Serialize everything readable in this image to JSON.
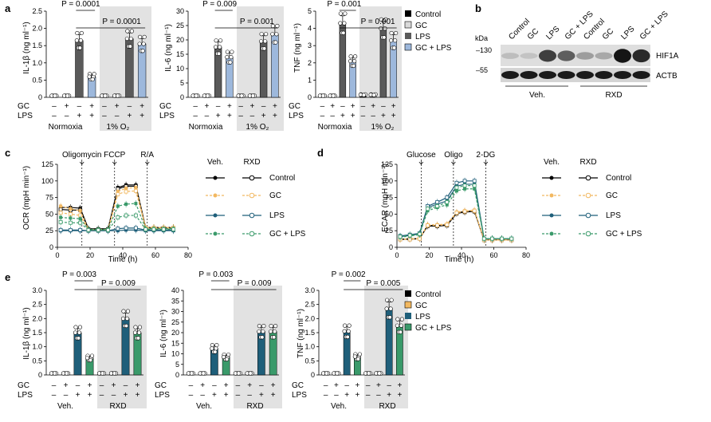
{
  "panel_letters": {
    "a": "a",
    "b": "b",
    "c": "c",
    "d": "d",
    "e": "e"
  },
  "colors": {
    "black": "#000000",
    "white": "#ffffff",
    "gray": "#5a5a5a",
    "lightblue": "#9db8dc",
    "yellow": "#f2b860",
    "navy": "#1f5f7a",
    "green": "#3a9a6a",
    "shade": "#e2e2e2"
  },
  "row_labels": {
    "gc": "GC",
    "lps": "LPS"
  },
  "signs": {
    "gc": [
      "–",
      "+",
      "–",
      "+",
      "–",
      "+",
      "–",
      "+"
    ],
    "lps": [
      "–",
      "–",
      "+",
      "+",
      "–",
      "–",
      "+",
      "+"
    ]
  },
  "legend_a": [
    {
      "label": "Control",
      "fill": "#000000"
    },
    {
      "label": "GC",
      "fill": "#d9d9d9"
    },
    {
      "label": "LPS",
      "fill": "#5a5a5a"
    },
    {
      "label": "GC + LPS",
      "fill": "#9db8dc"
    }
  ],
  "legend_e": [
    {
      "label": "Control",
      "fill": "#000000"
    },
    {
      "label": "GC",
      "fill": "#f2b860"
    },
    {
      "label": "LPS",
      "fill": "#1f5f7a"
    },
    {
      "label": "GC + LPS",
      "fill": "#3a9a6a"
    }
  ],
  "panel_a_group_labels": [
    "Normoxia",
    "1% O₂"
  ],
  "panel_e_group_labels": [
    "Veh.",
    "RXD"
  ],
  "chart_data": [
    {
      "id": "a1",
      "type": "bar",
      "ylabel": "IL-1β (ng ml⁻¹)",
      "ylim": [
        0,
        2.5
      ],
      "yticks": [
        "0",
        "0.5",
        "1.0",
        "1.5",
        "2.0",
        "2.5"
      ],
      "values": [
        0.03,
        0.03,
        1.65,
        0.6,
        0.03,
        0.03,
        1.7,
        1.55
      ],
      "p": [
        "P = 0.0001",
        "P = 0.0001"
      ]
    },
    {
      "id": "a2",
      "type": "bar",
      "ylabel": "IL-6 (ng ml⁻¹)",
      "ylim": [
        0,
        30
      ],
      "yticks": [
        "0",
        "5",
        "10",
        "15",
        "20",
        "25",
        "30"
      ],
      "values": [
        0.2,
        0.2,
        17.5,
        14,
        0.2,
        0.2,
        19.5,
        22
      ],
      "p": [
        "P = 0.009",
        "P = 0.001"
      ]
    },
    {
      "id": "a3",
      "type": "bar",
      "ylabel": "TNF (ng ml⁻¹)",
      "ylim": [
        0,
        5
      ],
      "yticks": [
        "0",
        "1",
        "2",
        "3",
        "4",
        "5"
      ],
      "values": [
        0.05,
        0.05,
        4.3,
        2.1,
        0.15,
        0.15,
        4.0,
        3.3
      ],
      "p": [
        "P = 0.001",
        "P = 0.001"
      ]
    },
    {
      "id": "e1",
      "type": "bar",
      "ylabel": "IL-1β (ng ml⁻¹)",
      "ylim": [
        0,
        3.0
      ],
      "yticks": [
        "0",
        "0.5",
        "1.0",
        "1.5",
        "2.0",
        "2.5",
        "3.0"
      ],
      "values": [
        0.05,
        0.05,
        1.5,
        0.6,
        0.05,
        0.05,
        2.0,
        1.5
      ],
      "p": [
        "P = 0.003",
        "P = 0.009"
      ]
    },
    {
      "id": "e2",
      "type": "bar",
      "ylabel": "IL-6 (ng ml⁻¹)",
      "ylim": [
        0,
        40
      ],
      "yticks": [
        "0",
        "5",
        "10",
        "15",
        "20",
        "25",
        "30",
        "35",
        "40"
      ],
      "values": [
        0.3,
        0.3,
        12.5,
        8.5,
        0.3,
        0.3,
        20.5,
        20.5
      ],
      "p": [
        "P = 0.003",
        "P = 0.009"
      ]
    },
    {
      "id": "e3",
      "type": "bar",
      "ylabel": "TNF (ng ml⁻¹)",
      "ylim": [
        0,
        3.0
      ],
      "yticks": [
        "0",
        "0.5",
        "1.0",
        "1.5",
        "2.0",
        "2.5",
        "3.0"
      ],
      "values": [
        0.02,
        0.02,
        1.55,
        0.65,
        0.02,
        0.02,
        2.35,
        1.75
      ],
      "p": [
        "P = 0.002",
        "P = 0.005"
      ]
    },
    {
      "id": "c",
      "type": "line",
      "xlabel": "Time (h)",
      "ylabel": "OCR (mpH min⁻¹)",
      "xlim": [
        0,
        80
      ],
      "ylim": [
        0,
        125
      ],
      "xticks": [
        "0",
        "20",
        "40",
        "60",
        "80"
      ],
      "yticks": [
        "0",
        "25",
        "50",
        "75",
        "100",
        "125"
      ],
      "injections": [
        "Oligomycin",
        "FCCP",
        "R/A"
      ],
      "x": [
        2,
        8,
        14,
        19,
        25,
        31,
        37,
        42,
        48,
        54,
        59,
        65,
        71
      ],
      "series": [
        {
          "name": "Veh. Control",
          "color": "#000000",
          "filled": true,
          "dash": false,
          "values": [
            60,
            60,
            59,
            28,
            28,
            28,
            90,
            94,
            94,
            30,
            30,
            30,
            30
          ]
        },
        {
          "name": "RXD Control",
          "color": "#000000",
          "filled": false,
          "dash": false,
          "values": [
            57,
            56,
            56,
            27,
            27,
            27,
            88,
            92,
            92,
            29,
            29,
            29,
            29
          ]
        },
        {
          "name": "Veh. GC",
          "color": "#f2b860",
          "filled": true,
          "dash": true,
          "values": [
            62,
            58,
            55,
            27,
            27,
            27,
            84,
            89,
            90,
            30,
            30,
            30,
            30
          ]
        },
        {
          "name": "RXD GC",
          "color": "#f2b860",
          "filled": false,
          "dash": true,
          "values": [
            52,
            50,
            48,
            26,
            26,
            26,
            80,
            84,
            85,
            29,
            29,
            29,
            29
          ]
        },
        {
          "name": "Veh. LPS",
          "color": "#1f5f7a",
          "filled": true,
          "dash": false,
          "values": [
            25,
            25,
            25,
            25,
            25,
            25,
            25,
            26,
            26,
            25,
            25,
            25,
            25
          ]
        },
        {
          "name": "RXD LPS",
          "color": "#1f5f7a",
          "filled": false,
          "dash": false,
          "values": [
            26,
            26,
            26,
            25,
            25,
            25,
            28,
            29,
            29,
            26,
            26,
            26,
            26
          ]
        },
        {
          "name": "Veh. GC + LPS",
          "color": "#3a9a6a",
          "filled": true,
          "dash": true,
          "values": [
            45,
            44,
            43,
            27,
            27,
            27,
            62,
            65,
            66,
            28,
            28,
            28,
            28
          ]
        },
        {
          "name": "RXD GC + LPS",
          "color": "#3a9a6a",
          "filled": false,
          "dash": true,
          "values": [
            38,
            37,
            37,
            26,
            26,
            26,
            45,
            48,
            48,
            27,
            27,
            27,
            27
          ]
        }
      ]
    },
    {
      "id": "d",
      "type": "line",
      "xlabel": "Time (h)",
      "ylabel": "ECAR (mpH min⁻¹)",
      "xlim": [
        0,
        80
      ],
      "ylim": [
        0,
        125
      ],
      "xticks": [
        "0",
        "20",
        "40",
        "60",
        "80"
      ],
      "yticks": [
        "0",
        "25",
        "50",
        "75",
        "100",
        "125"
      ],
      "injections": [
        "Glucose",
        "Oligo",
        "2-DG"
      ],
      "x": [
        2,
        8,
        14,
        19,
        25,
        31,
        37,
        42,
        48,
        54,
        59,
        65,
        71
      ],
      "series": [
        {
          "name": "Veh. Control",
          "color": "#000000",
          "filled": true,
          "dash": false,
          "values": [
            12,
            13,
            13,
            33,
            33,
            34,
            52,
            54,
            55,
            11,
            11,
            11,
            11
          ]
        },
        {
          "name": "RXD Control",
          "color": "#000000",
          "filled": false,
          "dash": false,
          "values": [
            12,
            12,
            13,
            32,
            32,
            33,
            51,
            53,
            54,
            11,
            11,
            11,
            11
          ]
        },
        {
          "name": "Veh. GC",
          "color": "#f2b860",
          "filled": true,
          "dash": true,
          "values": [
            12,
            13,
            13,
            34,
            34,
            35,
            53,
            55,
            56,
            11,
            11,
            11,
            11
          ]
        },
        {
          "name": "RXD GC",
          "color": "#f2b860",
          "filled": false,
          "dash": true,
          "values": [
            12,
            12,
            13,
            33,
            33,
            34,
            52,
            54,
            55,
            11,
            11,
            11,
            11
          ]
        },
        {
          "name": "Veh. LPS",
          "color": "#1f5f7a",
          "filled": true,
          "dash": false,
          "values": [
            16,
            18,
            20,
            60,
            65,
            70,
            92,
            95,
            95,
            13,
            13,
            13,
            13
          ]
        },
        {
          "name": "RXD LPS",
          "color": "#1f5f7a",
          "filled": false,
          "dash": false,
          "values": [
            17,
            19,
            21,
            62,
            68,
            75,
            97,
            100,
            100,
            13,
            13,
            13,
            13
          ]
        },
        {
          "name": "Veh. GC + LPS",
          "color": "#3a9a6a",
          "filled": true,
          "dash": true,
          "values": [
            15,
            17,
            19,
            55,
            60,
            64,
            85,
            88,
            88,
            13,
            13,
            13,
            13
          ]
        },
        {
          "name": "RXD GC + LPS",
          "color": "#3a9a6a",
          "filled": false,
          "dash": true,
          "values": [
            16,
            18,
            20,
            58,
            62,
            68,
            90,
            93,
            93,
            13,
            13,
            13,
            13
          ]
        }
      ]
    }
  ],
  "line_legend": {
    "headers": [
      "Veh.",
      "RXD"
    ],
    "labels": [
      "Control",
      "GC",
      "LPS",
      "GC + LPS"
    ],
    "colors": [
      "#000000",
      "#f2b860",
      "#1f5f7a",
      "#3a9a6a"
    ]
  },
  "blot": {
    "lanes": [
      "Control",
      "GC",
      "LPS",
      "GC + LPS",
      "Control",
      "GC",
      "LPS",
      "GC + LPS"
    ],
    "kda_header": "kDa",
    "markers": [
      "–130",
      "–55"
    ],
    "proteins": [
      "HIF1A",
      "ACTB"
    ],
    "groups": [
      "Veh.",
      "RXD"
    ],
    "hif_intensity": [
      0.15,
      0.12,
      0.75,
      0.6,
      0.3,
      0.25,
      0.95,
      0.85
    ]
  }
}
